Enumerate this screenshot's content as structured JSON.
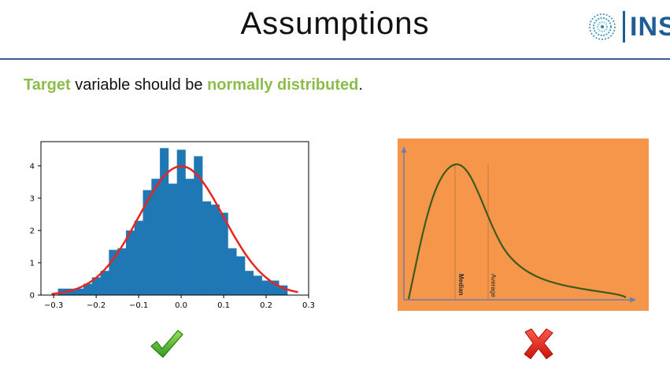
{
  "slide": {
    "title": "Assumptions",
    "logo_text": "INSA",
    "bullet": {
      "part1": "Target",
      "part2": " variable should be ",
      "part3": "normally distributed",
      "part4": "."
    }
  },
  "chart_data": [
    {
      "type": "bar",
      "title": "",
      "xlabel": "",
      "ylabel": "",
      "xlim": [
        -0.33,
        0.3
      ],
      "ylim": [
        0,
        4.75
      ],
      "x_ticks": [
        "−0.3",
        "−0.2",
        "−0.1",
        "0.0",
        "0.1",
        "0.2",
        "0.3"
      ],
      "y_ticks": [
        "0",
        "1",
        "2",
        "3",
        "4"
      ],
      "bin_edges": [
        -0.29,
        -0.27,
        -0.25,
        -0.23,
        -0.21,
        -0.19,
        -0.17,
        -0.15,
        -0.13,
        -0.11,
        -0.09,
        -0.07,
        -0.05,
        -0.03,
        -0.01,
        0.01,
        0.03,
        0.05,
        0.07,
        0.09,
        0.11,
        0.13,
        0.15,
        0.17,
        0.19,
        0.21,
        0.23,
        0.25
      ],
      "values": [
        0.2,
        0.2,
        0.2,
        0.35,
        0.55,
        0.75,
        1.4,
        1.45,
        2.0,
        2.3,
        3.25,
        3.6,
        4.55,
        3.45,
        4.5,
        3.6,
        4.3,
        2.9,
        2.8,
        2.55,
        1.45,
        1.2,
        0.75,
        0.6,
        0.45,
        0.45,
        0.3
      ],
      "bar_color": "#1f77b4",
      "overlay_curve": {
        "type": "normal_pdf",
        "mean": 0.0,
        "std": 0.1,
        "color": "#e8261f"
      },
      "grid": false
    },
    {
      "type": "line",
      "title": "",
      "xlabel": "",
      "ylabel": "",
      "background": "#f5964a",
      "line_color": "#3d5a1f",
      "axis_color": "#6b7fa8",
      "annotations": [
        "Median",
        "Average"
      ]
    }
  ],
  "marks": {
    "check": "check-icon",
    "cross": "cross-icon"
  }
}
